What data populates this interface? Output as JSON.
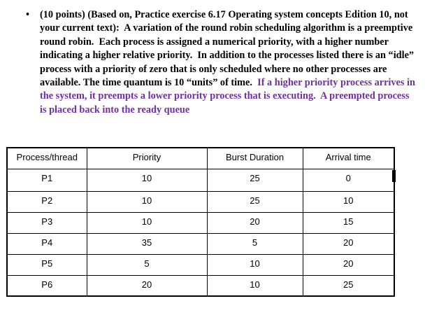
{
  "document": {
    "bullet_marker": "•",
    "question": {
      "black_text": "(10 points) (Based on, Practice exercise 6.17 Operating system concepts Edition 10, not your current text):  A variation of the round robin scheduling algorithm is a preemptive round robin.  Each process is assigned a numerical priority, with a higher number indicating a higher relative priority.  In addition to the processes listed there is an “idle” process with a priority of zero that is only scheduled where no other processes are available. The time quantum is 10 “units” of time.  ",
      "purple_text": "If a higher priority process arrives in the system, it preempts a lower priority process that is executing.  A preempted process is placed back into the ready queue",
      "purple_color": "#7030A0",
      "black_color": "#000000"
    },
    "table": {
      "columns": [
        "Process/thread",
        "Priority",
        "Burst Duration",
        "Arrival time"
      ],
      "rows": [
        [
          "P1",
          "10",
          "25",
          "0"
        ],
        [
          "P2",
          "10",
          "25",
          "10"
        ],
        [
          "P3",
          "10",
          "20",
          "15"
        ],
        [
          "P4",
          "35",
          "5",
          "20"
        ],
        [
          "P5",
          "5",
          "10",
          "20"
        ],
        [
          "P6",
          "20",
          "10",
          "25"
        ]
      ]
    }
  }
}
